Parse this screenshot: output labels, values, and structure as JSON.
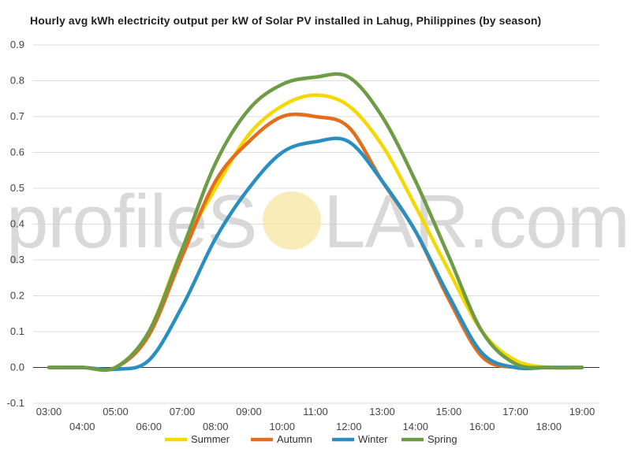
{
  "chart_data": {
    "type": "line",
    "title": "Hourly avg kWh electricity output per kW of Solar PV installed in Lahug, Philippines (by season)",
    "xlabel": "",
    "ylabel": "",
    "ylim": [
      -0.1,
      0.9
    ],
    "yticks": [
      "-0.1",
      "0.0",
      "0.1",
      "0.2",
      "0.3",
      "0.4",
      "0.5",
      "0.6",
      "0.7",
      "0.8",
      "0.9"
    ],
    "x": [
      "03:00",
      "04:00",
      "05:00",
      "06:00",
      "07:00",
      "08:00",
      "09:00",
      "10:00",
      "11:00",
      "12:00",
      "13:00",
      "14:00",
      "15:00",
      "16:00",
      "17:00",
      "18:00",
      "19:00"
    ],
    "grid": true,
    "legend_position": "bottom",
    "series": [
      {
        "name": "Summer",
        "color": "#f5d800",
        "values": [
          0.0,
          0.0,
          0.0,
          0.1,
          0.33,
          0.5,
          0.65,
          0.73,
          0.76,
          0.73,
          0.62,
          0.45,
          0.27,
          0.1,
          0.02,
          0.0,
          0.0
        ]
      },
      {
        "name": "Autumn",
        "color": "#e36e1c",
        "values": [
          0.0,
          0.0,
          0.0,
          0.09,
          0.31,
          0.52,
          0.63,
          0.7,
          0.7,
          0.67,
          0.52,
          0.38,
          0.19,
          0.03,
          0.0,
          0.0,
          0.0
        ]
      },
      {
        "name": "Winter",
        "color": "#2a8fc0",
        "values": [
          0.0,
          0.0,
          -0.005,
          0.02,
          0.17,
          0.36,
          0.5,
          0.6,
          0.63,
          0.63,
          0.52,
          0.38,
          0.2,
          0.04,
          0.0,
          0.0,
          0.0
        ]
      },
      {
        "name": "Spring",
        "color": "#6e9b45",
        "values": [
          0.0,
          0.0,
          0.0,
          0.1,
          0.33,
          0.57,
          0.72,
          0.79,
          0.81,
          0.81,
          0.7,
          0.52,
          0.31,
          0.1,
          0.01,
          0.0,
          0.0
        ]
      }
    ]
  },
  "watermark": {
    "text_left": "profileS",
    "text_right": "LAR.com"
  }
}
